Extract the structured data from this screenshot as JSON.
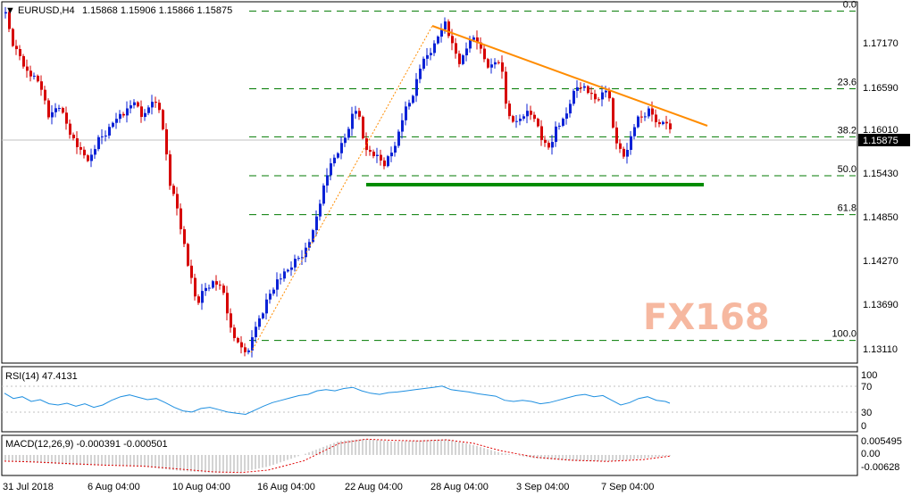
{
  "header": {
    "symbol_label": "EURUSD,H4",
    "ohlc": "1.15868 1.15906 1.15866 1.15875"
  },
  "watermark": "FX168",
  "colors": {
    "bull": "#0b22d6",
    "bear": "#d60000",
    "fib": "#007a00",
    "support": "#008c00",
    "trend": "#ff8c00",
    "rsi": "#1e8fe0",
    "macd_hist": "#a8a8a8",
    "macd_signal": "#e00000",
    "grid": "#c0c0c0",
    "current_price_bg": "#000000"
  },
  "price_axis": {
    "ticks": [
      "1.17170",
      "1.16590",
      "1.16010",
      "1.15430",
      "1.14850",
      "1.14270",
      "1.13690",
      "1.13110"
    ],
    "current_price": "1.15875"
  },
  "fib_labels": [
    "0.0",
    "23.6",
    "38.2",
    "50.0",
    "61.8",
    "100.0"
  ],
  "rsi": {
    "label": "RSI(14) 47.4131",
    "levels": [
      "100",
      "70",
      "30",
      "0"
    ]
  },
  "macd": {
    "label": "MACD(12,26,9) -0.000391 -0.000501",
    "levels": [
      "0.005495",
      "0.00",
      "-0.00628"
    ]
  },
  "time_axis": [
    "31 Jul 2018",
    "6 Aug 04:00",
    "10 Aug 04:00",
    "16 Aug 04:00",
    "22 Aug 04:00",
    "28 Aug 04:00",
    "3 Sep 04:00",
    "7 Sep 04:00"
  ],
  "chart_data": {
    "type": "candlestick",
    "symbol": "EURUSD",
    "timeframe": "H4",
    "y_range": [
      1.13,
      1.175
    ],
    "path": [
      [
        0,
        1.1722
      ],
      [
        5,
        1.1735
      ],
      [
        15,
        1.169
      ],
      [
        22,
        1.168
      ],
      [
        30,
        1.166
      ],
      [
        45,
        1.1645
      ],
      [
        55,
        1.16
      ],
      [
        65,
        1.162
      ],
      [
        80,
        1.158
      ],
      [
        90,
        1.156
      ],
      [
        100,
        1.155
      ],
      [
        110,
        1.1575
      ],
      [
        120,
        1.1585
      ],
      [
        130,
        1.1605
      ],
      [
        140,
        1.1608
      ],
      [
        150,
        1.1625
      ],
      [
        160,
        1.16
      ],
      [
        170,
        1.1625
      ],
      [
        180,
        1.161
      ],
      [
        190,
        1.152
      ],
      [
        198,
        1.149
      ],
      [
        205,
        1.145
      ],
      [
        210,
        1.142
      ],
      [
        220,
        1.137
      ],
      [
        228,
        1.139
      ],
      [
        240,
        1.14
      ],
      [
        250,
        1.1385
      ],
      [
        258,
        1.134
      ],
      [
        266,
        1.132
      ],
      [
        272,
        1.1315
      ],
      [
        278,
        1.1311
      ],
      [
        285,
        1.1345
      ],
      [
        292,
        1.1355
      ],
      [
        300,
        1.138
      ],
      [
        310,
        1.14
      ],
      [
        320,
        1.141
      ],
      [
        330,
        1.1425
      ],
      [
        340,
        1.1435
      ],
      [
        350,
        1.146
      ],
      [
        356,
        1.149
      ],
      [
        365,
        1.153
      ],
      [
        375,
        1.1555
      ],
      [
        385,
        1.1575
      ],
      [
        395,
        1.161
      ],
      [
        400,
        1.1615
      ],
      [
        405,
        1.158
      ],
      [
        412,
        1.156
      ],
      [
        420,
        1.1555
      ],
      [
        430,
        1.1545
      ],
      [
        438,
        1.156
      ],
      [
        445,
        1.158
      ],
      [
        452,
        1.161
      ],
      [
        460,
        1.1625
      ],
      [
        470,
        1.1665
      ],
      [
        478,
        1.168
      ],
      [
        485,
        1.169
      ],
      [
        492,
        1.171
      ],
      [
        497,
        1.1725
      ],
      [
        505,
        1.1695
      ],
      [
        515,
        1.167
      ],
      [
        522,
        1.169
      ],
      [
        532,
        1.1705
      ],
      [
        540,
        1.168
      ],
      [
        548,
        1.1665
      ],
      [
        555,
        1.1675
      ],
      [
        562,
        1.166
      ],
      [
        568,
        1.1605
      ],
      [
        578,
        1.1595
      ],
      [
        588,
        1.161
      ],
      [
        598,
        1.1605
      ],
      [
        608,
        1.157
      ],
      [
        615,
        1.1565
      ],
      [
        622,
        1.159
      ],
      [
        632,
        1.16
      ],
      [
        640,
        1.163
      ],
      [
        648,
        1.1645
      ],
      [
        655,
        1.164
      ],
      [
        665,
        1.1625
      ],
      [
        672,
        1.163
      ],
      [
        680,
        1.164
      ],
      [
        686,
        1.159
      ],
      [
        692,
        1.1565
      ],
      [
        698,
        1.1555
      ],
      [
        705,
        1.1575
      ],
      [
        712,
        1.16
      ],
      [
        720,
        1.1605
      ],
      [
        728,
        1.1615
      ],
      [
        735,
        1.159
      ],
      [
        742,
        1.16
      ],
      [
        748,
        1.159
      ],
      [
        752,
        1.1588
      ]
    ],
    "fibonacci": [
      {
        "level": "0.0",
        "price": 1.17355
      },
      {
        "level": "23.6",
        "price": 1.16388
      },
      {
        "level": "38.2",
        "price": 1.1579
      },
      {
        "level": "50.0",
        "price": 1.15307
      },
      {
        "level": "61.8",
        "price": 1.14823
      },
      {
        "level": "100.0",
        "price": 1.13258
      }
    ],
    "support_line": 1.1542,
    "trendline": [
      [
        484,
        1.1738
      ],
      [
        792,
        1.161
      ]
    ],
    "rsi_path": [
      [
        5,
        64
      ],
      [
        15,
        55
      ],
      [
        25,
        58
      ],
      [
        35,
        50
      ],
      [
        45,
        53
      ],
      [
        55,
        46
      ],
      [
        65,
        44
      ],
      [
        75,
        47
      ],
      [
        85,
        42
      ],
      [
        95,
        46
      ],
      [
        105,
        40
      ],
      [
        115,
        44
      ],
      [
        125,
        52
      ],
      [
        135,
        58
      ],
      [
        145,
        61
      ],
      [
        155,
        57
      ],
      [
        165,
        53
      ],
      [
        175,
        55
      ],
      [
        185,
        48
      ],
      [
        195,
        40
      ],
      [
        205,
        34
      ],
      [
        215,
        32
      ],
      [
        225,
        38
      ],
      [
        235,
        40
      ],
      [
        245,
        36
      ],
      [
        255,
        32
      ],
      [
        265,
        30
      ],
      [
        275,
        28
      ],
      [
        285,
        35
      ],
      [
        295,
        42
      ],
      [
        305,
        48
      ],
      [
        315,
        52
      ],
      [
        325,
        56
      ],
      [
        335,
        60
      ],
      [
        345,
        62
      ],
      [
        355,
        68
      ],
      [
        365,
        70
      ],
      [
        375,
        68
      ],
      [
        385,
        72
      ],
      [
        395,
        74
      ],
      [
        405,
        68
      ],
      [
        415,
        64
      ],
      [
        425,
        62
      ],
      [
        435,
        65
      ],
      [
        445,
        66
      ],
      [
        455,
        68
      ],
      [
        465,
        70
      ],
      [
        475,
        72
      ],
      [
        485,
        74
      ],
      [
        495,
        76
      ],
      [
        505,
        70
      ],
      [
        515,
        68
      ],
      [
        525,
        66
      ],
      [
        535,
        63
      ],
      [
        545,
        61
      ],
      [
        555,
        59
      ],
      [
        565,
        52
      ],
      [
        575,
        50
      ],
      [
        585,
        52
      ],
      [
        595,
        50
      ],
      [
        605,
        46
      ],
      [
        615,
        48
      ],
      [
        625,
        52
      ],
      [
        635,
        56
      ],
      [
        645,
        60
      ],
      [
        655,
        62
      ],
      [
        665,
        58
      ],
      [
        675,
        60
      ],
      [
        685,
        52
      ],
      [
        695,
        44
      ],
      [
        705,
        48
      ],
      [
        715,
        55
      ],
      [
        725,
        58
      ],
      [
        735,
        52
      ],
      [
        745,
        50
      ],
      [
        750,
        47
      ]
    ],
    "macd_signal_path": [
      [
        5,
        -0.0021
      ],
      [
        40,
        -0.0024
      ],
      [
        80,
        -0.003
      ],
      [
        120,
        -0.0035
      ],
      [
        160,
        -0.0038
      ],
      [
        200,
        -0.0048
      ],
      [
        240,
        -0.0058
      ],
      [
        270,
        -0.006
      ],
      [
        300,
        -0.0052
      ],
      [
        340,
        -0.002
      ],
      [
        380,
        0.004
      ],
      [
        410,
        0.0054
      ],
      [
        440,
        0.005
      ],
      [
        470,
        0.0048
      ],
      [
        500,
        0.0052
      ],
      [
        530,
        0.004
      ],
      [
        560,
        0.0015
      ],
      [
        600,
        -0.0008
      ],
      [
        640,
        -0.0018
      ],
      [
        680,
        -0.0022
      ],
      [
        720,
        -0.0016
      ],
      [
        750,
        -0.0004
      ]
    ],
    "macd_hist_path": [
      [
        5,
        -0.0018
      ],
      [
        40,
        -0.0026
      ],
      [
        80,
        -0.0034
      ],
      [
        120,
        -0.0036
      ],
      [
        160,
        -0.004
      ],
      [
        200,
        -0.0054
      ],
      [
        240,
        -0.0062
      ],
      [
        270,
        -0.0058
      ],
      [
        300,
        -0.004
      ],
      [
        340,
        0.0002
      ],
      [
        380,
        0.0048
      ],
      [
        410,
        0.0055
      ],
      [
        440,
        0.0046
      ],
      [
        470,
        0.005
      ],
      [
        500,
        0.0054
      ],
      [
        530,
        0.0034
      ],
      [
        560,
        0.0008
      ],
      [
        600,
        -0.0012
      ],
      [
        640,
        -0.002
      ],
      [
        680,
        -0.0022
      ],
      [
        720,
        -0.0012
      ],
      [
        750,
        -0.0002
      ]
    ]
  }
}
